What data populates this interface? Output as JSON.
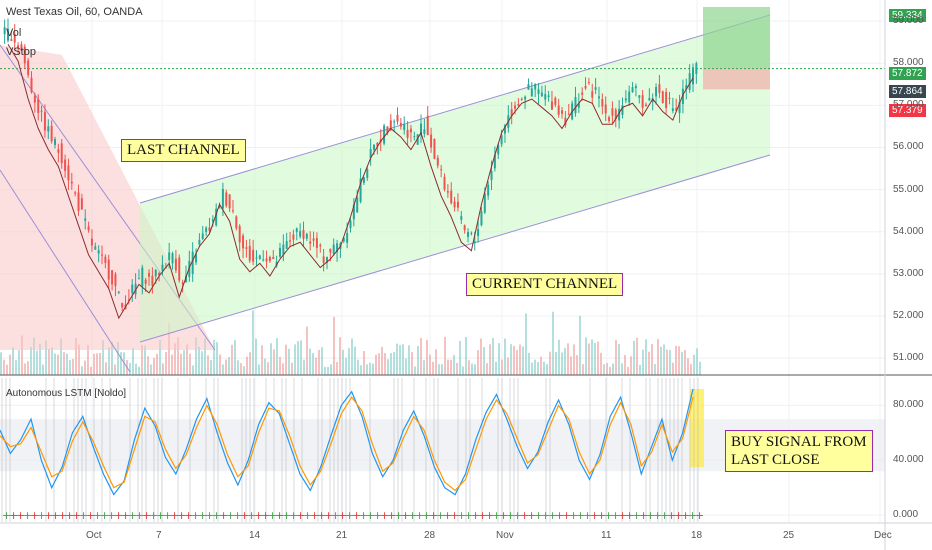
{
  "header": {
    "symbol_line": "West Texas Oil, 60, OANDA",
    "vol_label": "Vol",
    "stop_label": "VStop"
  },
  "indicator": {
    "name": "Autonomous LSTM [Noldo]"
  },
  "annotations": {
    "last_channel": "LAST CHANNEL",
    "current_channel": "CURRENT CHANNEL",
    "buy_signal_line1": "BUY SIGNAL FROM",
    "buy_signal_line2": "LAST CLOSE"
  },
  "price_tags": {
    "target": "59.334",
    "last": "57.872",
    "current": "57.864",
    "stop": "57.379"
  },
  "colors": {
    "up": "#26a69a",
    "down": "#ef5350",
    "channel_up_fill": "#c8f7c5",
    "channel_down_fill": "#f9c6c6",
    "channel_line": "#9c8fd6",
    "target_tag": "#2fa34f",
    "stop_tag": "#f23645",
    "current_tag": "#37474f",
    "lstm_blue": "#2196f3",
    "lstm_orange": "#ff9800",
    "highlight": "#ffeb3b"
  },
  "chart_data": [
    {
      "type": "line",
      "title": "West Texas Oil, 60, OANDA",
      "ylim": [
        50.6,
        59.5
      ],
      "y_ticks": [
        "59.000",
        "58.000",
        "57.000",
        "56.000",
        "55.000",
        "54.000",
        "53.000",
        "52.000",
        "51.000"
      ],
      "x_ticks": [
        "Oct",
        "7",
        "14",
        "21",
        "28",
        "Nov",
        "11",
        "18",
        "25",
        "Dec"
      ],
      "series": [
        {
          "values": [
            58.7,
            58.3,
            57.4,
            56.7,
            56.2,
            55.8,
            55.1,
            54.4,
            53.7,
            53.3,
            52.9,
            52.2,
            52.6,
            53.0,
            52.8,
            53.2,
            53.5,
            52.7,
            53.4,
            53.9,
            54.2,
            54.9,
            54.5,
            53.6,
            53.3,
            53.5,
            53.2,
            53.6,
            53.9,
            54.0,
            53.7,
            53.4,
            53.6,
            53.9,
            54.6,
            55.4,
            56.0,
            56.4,
            56.7,
            56.5,
            56.2,
            56.6,
            55.8,
            55.1,
            54.6,
            54.0,
            53.8,
            54.9,
            55.8,
            56.6,
            57.0,
            57.3,
            57.4,
            57.2,
            57.0,
            56.7,
            57.1,
            57.4,
            57.3,
            56.8,
            56.8,
            57.2,
            57.3,
            57.0,
            57.4,
            57.1,
            56.9,
            57.5,
            57.9
          ]
        }
      ],
      "overlays": [
        {
          "name": "LAST CHANNEL"
        },
        {
          "name": "CURRENT CHANNEL"
        }
      ],
      "price_levels": [
        59.334,
        57.872,
        57.864,
        57.379
      ]
    },
    {
      "type": "line",
      "title": "Autonomous LSTM [Noldo]",
      "ylim": [
        -5,
        100
      ],
      "y_ticks": [
        "80.000",
        "40.000",
        "0.000"
      ],
      "series": [
        {
          "values": [
            62,
            45,
            55,
            70,
            40,
            20,
            35,
            60,
            72,
            50,
            30,
            15,
            25,
            55,
            78,
            65,
            42,
            30,
            48,
            70,
            85,
            60,
            38,
            22,
            40,
            66,
            82,
            74,
            52,
            30,
            18,
            35,
            58,
            80,
            90,
            72,
            45,
            28,
            40,
            62,
            76,
            58,
            35,
            20,
            15,
            30,
            55,
            75,
            88,
            70,
            50,
            34,
            46,
            68,
            84,
            66,
            40,
            26,
            44,
            72,
            86,
            60,
            30,
            50,
            70,
            40,
            60,
            92
          ]
        },
        {
          "values": [
            58,
            50,
            52,
            64,
            46,
            28,
            32,
            54,
            68,
            54,
            36,
            20,
            24,
            48,
            72,
            68,
            48,
            34,
            44,
            64,
            80,
            66,
            44,
            28,
            36,
            60,
            78,
            76,
            58,
            36,
            22,
            32,
            52,
            74,
            86,
            76,
            52,
            32,
            38,
            56,
            72,
            62,
            40,
            24,
            18,
            26,
            48,
            70,
            84,
            74,
            56,
            38,
            44,
            62,
            80,
            70,
            46,
            30,
            40,
            66,
            82,
            66,
            36,
            46,
            66,
            46,
            56,
            86
          ]
        }
      ]
    }
  ]
}
